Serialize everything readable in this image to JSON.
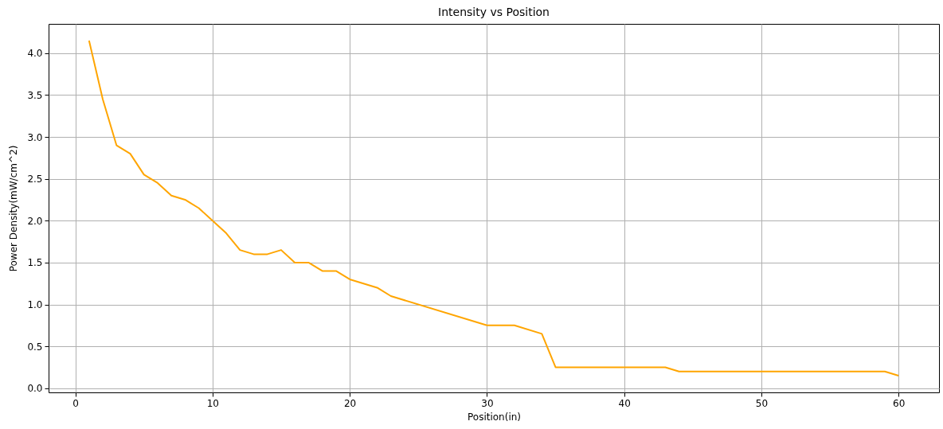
{
  "chart_data": {
    "type": "line",
    "title": "Intensity vs Position",
    "xlabel": "Position(in)",
    "ylabel": "Power Density(mW/cm^2)",
    "x": [
      1,
      2,
      3,
      4,
      5,
      6,
      7,
      8,
      9,
      10,
      11,
      12,
      13,
      14,
      15,
      16,
      17,
      18,
      19,
      20,
      22,
      23,
      30,
      32,
      34,
      35,
      43,
      44,
      59,
      60
    ],
    "values": [
      4.15,
      3.45,
      2.9,
      2.8,
      2.55,
      2.45,
      2.3,
      2.25,
      2.15,
      2.0,
      1.85,
      1.65,
      1.6,
      1.6,
      1.65,
      1.5,
      1.5,
      1.4,
      1.4,
      1.3,
      1.2,
      1.1,
      0.75,
      0.75,
      0.65,
      0.25,
      0.25,
      0.2,
      0.2,
      0.15
    ],
    "color": "#ffa500",
    "line_style": "solid",
    "grid": true,
    "xlim": [
      -1.95,
      62.95
    ],
    "xticks": [
      0,
      10,
      20,
      30,
      40,
      50,
      60
    ],
    "ylim": [
      -0.05,
      4.35
    ],
    "yticks": [
      {
        "value": 0,
        "label": "0.0"
      },
      0.5,
      {
        "value": 1,
        "label": "1.0"
      },
      1.5,
      {
        "value": 2,
        "label": "2.0"
      },
      2.5,
      {
        "value": 3,
        "label": "3.0"
      },
      3.5,
      {
        "value": 4,
        "label": "4.0"
      }
    ]
  }
}
